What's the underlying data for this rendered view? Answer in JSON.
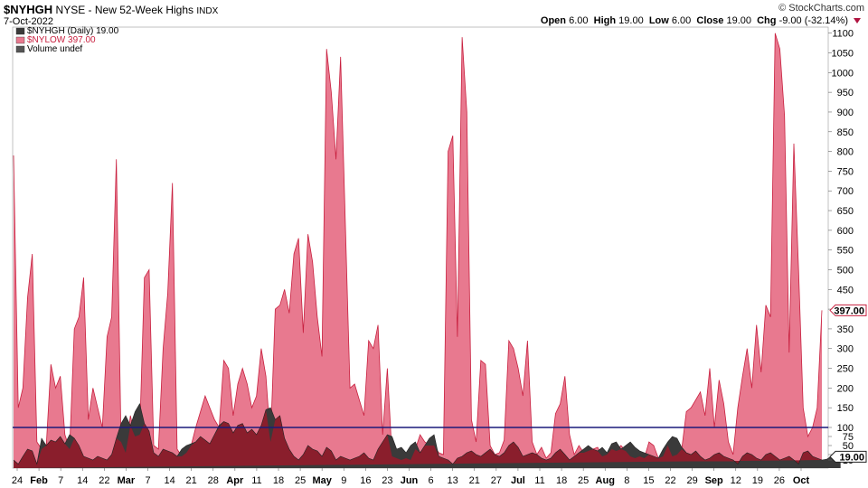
{
  "header": {
    "symbol": "$NYHGH",
    "name": "NYSE - New 52-Week Highs",
    "exchange": "INDX",
    "date": "7-Oct-2022",
    "brand": "© StockCharts.com",
    "open_label": "Open",
    "open": "6.00",
    "high_label": "High",
    "high": "19.00",
    "low_label": "Low",
    "low": "6.00",
    "close_label": "Close",
    "close": "19.00",
    "chg_label": "Chg",
    "chg": "-9.00 (-32.14%)"
  },
  "colors": {
    "nylow_fill": "#e8798f",
    "nylow_line": "#c8203f",
    "nyhgh_fill": "#8a1e2c",
    "overlap_fill": "#3a3a3a",
    "ref_line": "#1a1a7a"
  },
  "chart_data": {
    "type": "area",
    "title": "",
    "xlabel": "",
    "ylabel": "",
    "y_scale": "custom (compressed below 100)",
    "ylim": [
      0,
      1120
    ],
    "yticks": [
      10,
      25,
      50,
      75,
      100,
      150,
      200,
      250,
      300,
      350,
      400,
      450,
      500,
      550,
      600,
      650,
      700,
      750,
      800,
      850,
      900,
      950,
      1000,
      1050,
      1100
    ],
    "x_tick_labels": [
      "24",
      "Feb",
      "7",
      "14",
      "22",
      "Mar",
      "7",
      "14",
      "21",
      "28",
      "Apr",
      "11",
      "18",
      "25",
      "May",
      "9",
      "16",
      "23",
      "Jun",
      "6",
      "13",
      "21",
      "27",
      "Jul",
      "11",
      "18",
      "25",
      "Aug",
      "8",
      "15",
      "22",
      "29",
      "Sep",
      "12",
      "19",
      "26",
      "Oct"
    ],
    "reference_line": 100,
    "legend": [
      {
        "name": "$NYHGH (Daily) 19.00",
        "swatch": "#3a3a3a"
      },
      {
        "name": "$NYLOW 397.00",
        "swatch": "#e8798f"
      },
      {
        "name": "Volume undef",
        "swatch": "#555555"
      }
    ],
    "series": [
      {
        "name": "$NYLOW",
        "values": [
          790,
          150,
          200,
          430,
          540,
          60,
          40,
          50,
          260,
          200,
          230,
          80,
          40,
          350,
          380,
          480,
          120,
          200,
          150,
          100,
          330,
          380,
          780,
          60,
          30,
          130,
          75,
          80,
          480,
          500,
          50,
          40,
          300,
          440,
          720,
          40,
          20,
          30,
          50,
          100,
          140,
          180,
          150,
          120,
          100,
          270,
          250,
          130,
          210,
          250,
          210,
          150,
          180,
          300,
          230,
          60,
          400,
          410,
          450,
          390,
          540,
          580,
          340,
          590,
          520,
          380,
          280,
          1060,
          950,
          780,
          1040,
          620,
          200,
          210,
          170,
          130,
          320,
          300,
          360,
          80,
          250,
          20,
          15,
          10,
          15,
          10,
          40,
          80,
          60,
          50,
          50,
          30,
          25,
          800,
          840,
          330,
          1090,
          900,
          120,
          60,
          270,
          260,
          50,
          25,
          30,
          65,
          320,
          300,
          250,
          180,
          320,
          60,
          25,
          45,
          15,
          30,
          135,
          160,
          230,
          80,
          25,
          50,
          30,
          35,
          40,
          45,
          20,
          25,
          40,
          35,
          50,
          35,
          20,
          15,
          20,
          15,
          60,
          50,
          15,
          20,
          50,
          20,
          25,
          40,
          140,
          150,
          170,
          190,
          130,
          250,
          100,
          220,
          160,
          60,
          25,
          150,
          230,
          300,
          200,
          360,
          240,
          410,
          380,
          1100,
          1060,
          890,
          290,
          820,
          500,
          150,
          75,
          100,
          150,
          397
        ]
      },
      {
        "name": "$NYHGH",
        "values": [
          10,
          5,
          20,
          40,
          35,
          5,
          70,
          50,
          65,
          60,
          75,
          55,
          80,
          70,
          50,
          20,
          15,
          10,
          20,
          15,
          10,
          25,
          70,
          110,
          130,
          105,
          140,
          160,
          110,
          90,
          30,
          20,
          40,
          35,
          30,
          20,
          40,
          50,
          55,
          60,
          75,
          65,
          55,
          80,
          105,
          115,
          110,
          85,
          105,
          110,
          85,
          95,
          80,
          105,
          145,
          150,
          120,
          130,
          70,
          40,
          20,
          10,
          25,
          50,
          40,
          35,
          20,
          45,
          35,
          10,
          20,
          15,
          10,
          15,
          20,
          30,
          15,
          10,
          40,
          60,
          80,
          75,
          40,
          45,
          30,
          50,
          60,
          30,
          50,
          70,
          80,
          20,
          15,
          10,
          5,
          15,
          20,
          30,
          35,
          25,
          20,
          30,
          40,
          25,
          20,
          30,
          50,
          60,
          45,
          20,
          25,
          30,
          25,
          15,
          10,
          15,
          30,
          40,
          25,
          10,
          20,
          30,
          40,
          50,
          40,
          35,
          45,
          30,
          55,
          60,
          40,
          50,
          60,
          45,
          35,
          30,
          25,
          20,
          15,
          40,
          60,
          75,
          70,
          45,
          30,
          25,
          35,
          20,
          10,
          15,
          25,
          30,
          20,
          15,
          10,
          5,
          20,
          30,
          25,
          15,
          10,
          25,
          30,
          20,
          10,
          15,
          20,
          10,
          5,
          30,
          35,
          20,
          15,
          10,
          12,
          20,
          25,
          19
        ]
      }
    ]
  }
}
